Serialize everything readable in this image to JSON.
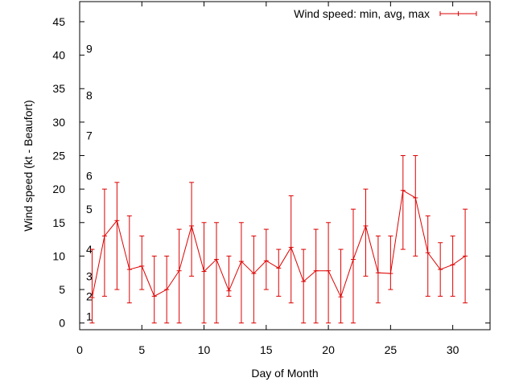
{
  "chart_data": {
    "type": "line",
    "title": "",
    "xlabel": "Day of Month",
    "ylabel": "Wind speed (kt - Beaufort)",
    "xlim": [
      0,
      33
    ],
    "ylim": [
      -1,
      48
    ],
    "x_ticks": [
      0,
      5,
      10,
      15,
      20,
      25,
      30
    ],
    "y_ticks": [
      0,
      5,
      10,
      15,
      20,
      25,
      30,
      35,
      40,
      45
    ],
    "beaufort_labels": [
      {
        "label": "1",
        "value": 1
      },
      {
        "label": "2",
        "value": 4
      },
      {
        "label": "3",
        "value": 7
      },
      {
        "label": "4",
        "value": 11
      },
      {
        "label": "5",
        "value": 17
      },
      {
        "label": "6",
        "value": 22
      },
      {
        "label": "7",
        "value": 28
      },
      {
        "label": "8",
        "value": 34
      },
      {
        "label": "9",
        "value": 41
      }
    ],
    "grid": false,
    "legend_position": "top-right",
    "series": [
      {
        "name": "Wind speed: min, avg, max",
        "color": "#dd0000",
        "x": [
          1,
          2,
          3,
          4,
          5,
          6,
          7,
          8,
          9,
          10,
          11,
          12,
          13,
          14,
          15,
          16,
          17,
          18,
          19,
          20,
          21,
          22,
          23,
          24,
          25,
          26,
          27,
          28,
          29,
          30,
          31
        ],
        "avg": [
          3.8,
          13,
          15.3,
          8,
          8.5,
          4,
          5,
          7.8,
          14.5,
          7.7,
          9.5,
          4.8,
          9.2,
          7.4,
          9.3,
          8.2,
          11.3,
          6.2,
          7.8,
          7.8,
          3.9,
          9.5,
          14.5,
          7.5,
          7.4,
          19.8,
          18.7,
          10.5,
          8,
          8.7,
          10
        ],
        "min": [
          0,
          4,
          5,
          3,
          5,
          0,
          0,
          0,
          7,
          0,
          0,
          4,
          0,
          0,
          5,
          4,
          3,
          0,
          0,
          0,
          0,
          0,
          7,
          3,
          5,
          11,
          10,
          4,
          4,
          4,
          3
        ],
        "max": [
          11,
          20,
          21,
          16,
          13,
          10,
          10,
          14,
          21,
          15,
          15,
          10,
          15,
          13,
          14,
          11,
          19,
          11,
          14,
          15,
          11,
          17,
          20,
          13,
          13,
          25,
          25,
          16,
          12,
          13,
          17
        ]
      }
    ]
  }
}
